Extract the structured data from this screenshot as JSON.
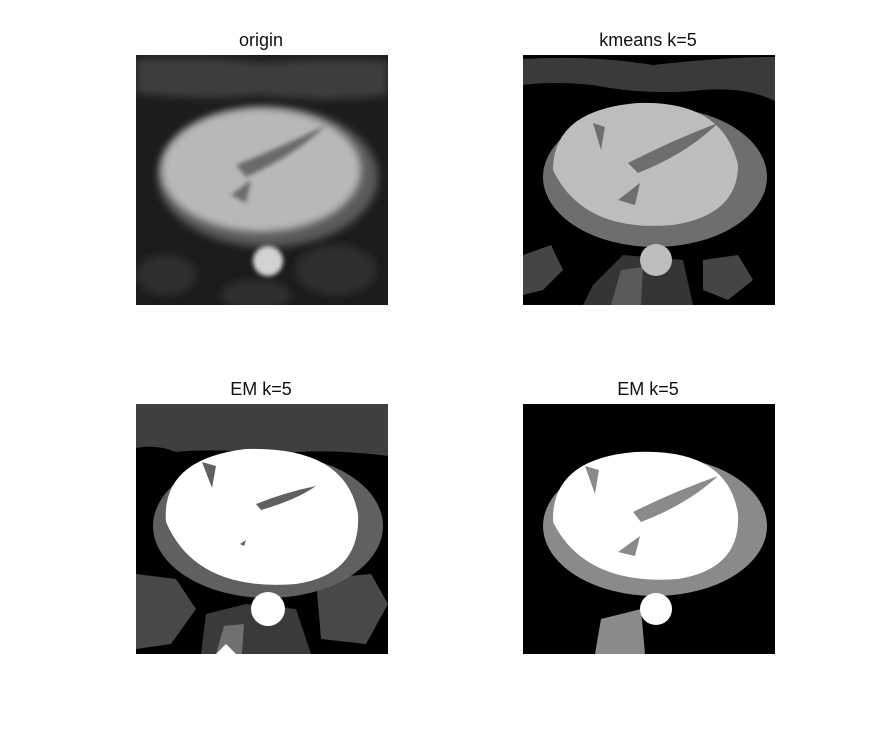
{
  "figure": {
    "panels": [
      {
        "title": "origin"
      },
      {
        "title": "kmeans k=5"
      },
      {
        "title": "EM k=5"
      },
      {
        "title": "EM k=5"
      }
    ]
  }
}
